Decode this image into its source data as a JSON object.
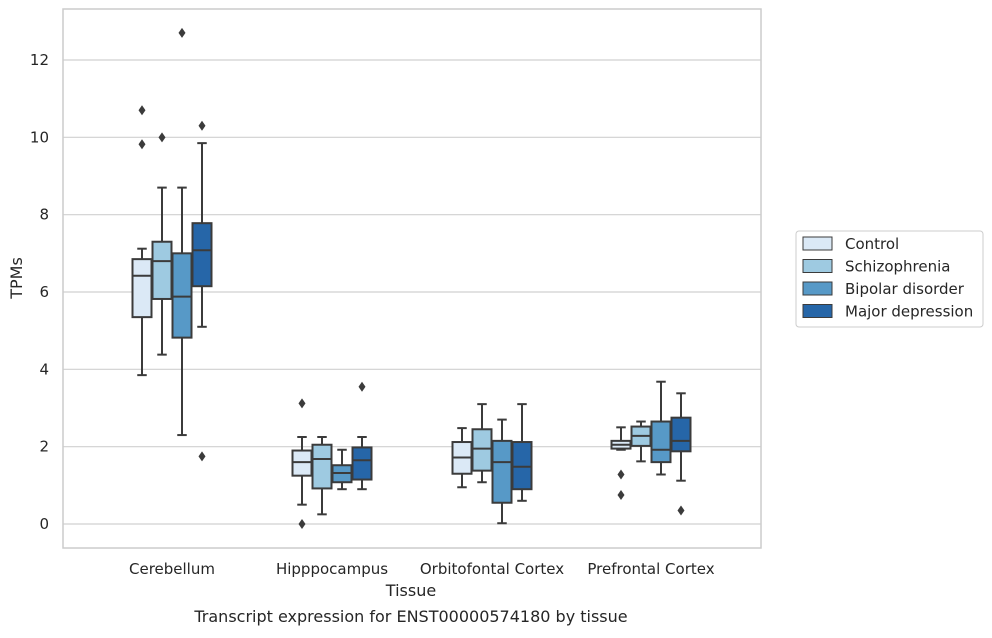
{
  "chart_data": {
    "type": "box",
    "caption": "Transcript expression for ENST00000574180 by tissue",
    "xlabel": "Tissue",
    "ylabel": "TPMs",
    "ylim": [
      -0.6,
      13.3
    ],
    "yticks": [
      0,
      2,
      4,
      6,
      8,
      10,
      12
    ],
    "categories": [
      "Cerebellum",
      "Hipppocampus",
      "Orbitofontal Cortex",
      "Prefrontal Cortex"
    ],
    "grid": true,
    "legend_position": "right-center",
    "series": [
      {
        "name": "Control",
        "color": "#dbe9f6",
        "boxes": [
          {
            "whisker_low": 3.85,
            "q1": 5.35,
            "median": 6.42,
            "q3": 6.85,
            "whisker_high": 7.12,
            "outliers": [
              9.82,
              10.7
            ]
          },
          {
            "whisker_low": 0.5,
            "q1": 1.25,
            "median": 1.6,
            "q3": 1.9,
            "whisker_high": 2.25,
            "outliers": [
              0.0,
              3.12
            ]
          },
          {
            "whisker_low": 0.95,
            "q1": 1.3,
            "median": 1.72,
            "q3": 2.12,
            "whisker_high": 2.48,
            "outliers": []
          },
          {
            "whisker_low": 1.92,
            "q1": 1.95,
            "median": 2.05,
            "q3": 2.15,
            "whisker_high": 2.5,
            "outliers": [
              0.75,
              1.28
            ]
          }
        ]
      },
      {
        "name": "Schizophrenia",
        "color": "#9ecae1",
        "boxes": [
          {
            "whisker_low": 4.38,
            "q1": 5.82,
            "median": 6.8,
            "q3": 7.3,
            "whisker_high": 8.7,
            "outliers": [
              10.0
            ]
          },
          {
            "whisker_low": 0.25,
            "q1": 0.92,
            "median": 1.68,
            "q3": 2.05,
            "whisker_high": 2.25,
            "outliers": []
          },
          {
            "whisker_low": 1.08,
            "q1": 1.38,
            "median": 1.95,
            "q3": 2.45,
            "whisker_high": 3.1,
            "outliers": []
          },
          {
            "whisker_low": 1.62,
            "q1": 2.02,
            "median": 2.28,
            "q3": 2.52,
            "whisker_high": 2.65,
            "outliers": []
          }
        ]
      },
      {
        "name": "Bipolar disorder",
        "color": "#5799c7",
        "boxes": [
          {
            "whisker_low": 2.3,
            "q1": 4.82,
            "median": 5.88,
            "q3": 7.0,
            "whisker_high": 8.7,
            "outliers": [
              12.7
            ]
          },
          {
            "whisker_low": 0.9,
            "q1": 1.08,
            "median": 1.32,
            "q3": 1.52,
            "whisker_high": 1.92,
            "outliers": []
          },
          {
            "whisker_low": 0.02,
            "q1": 0.55,
            "median": 1.6,
            "q3": 2.15,
            "whisker_high": 2.7,
            "outliers": []
          },
          {
            "whisker_low": 1.28,
            "q1": 1.6,
            "median": 1.92,
            "q3": 2.65,
            "whisker_high": 3.68,
            "outliers": []
          }
        ]
      },
      {
        "name": "Major depression",
        "color": "#2666a8",
        "boxes": [
          {
            "whisker_low": 5.1,
            "q1": 6.15,
            "median": 7.08,
            "q3": 7.78,
            "whisker_high": 9.85,
            "outliers": [
              1.75,
              10.3
            ]
          },
          {
            "whisker_low": 0.9,
            "q1": 1.15,
            "median": 1.65,
            "q3": 1.98,
            "whisker_high": 2.25,
            "outliers": [
              3.55
            ]
          },
          {
            "whisker_low": 0.6,
            "q1": 0.9,
            "median": 1.48,
            "q3": 2.12,
            "whisker_high": 3.1,
            "outliers": []
          },
          {
            "whisker_low": 1.12,
            "q1": 1.88,
            "median": 2.15,
            "q3": 2.75,
            "whisker_high": 3.38,
            "outliers": [
              0.35
            ]
          }
        ]
      }
    ]
  }
}
